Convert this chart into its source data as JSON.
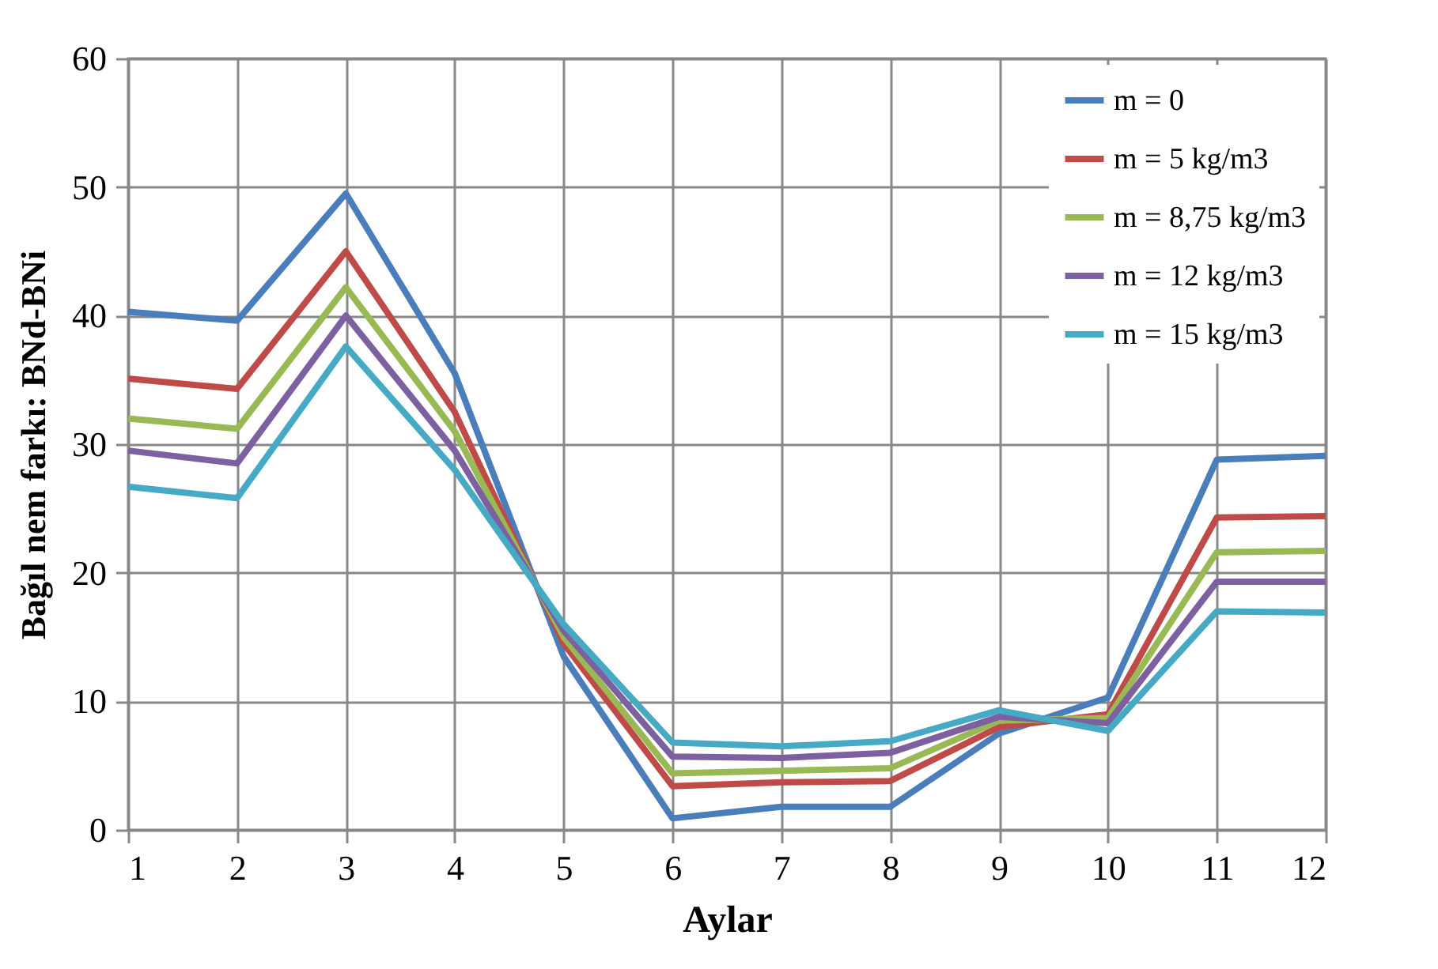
{
  "chart_data": {
    "type": "line",
    "xlabel": "Aylar",
    "ylabel": "Bağıl nem farkı: BNd-BNi",
    "x": [
      1,
      2,
      3,
      4,
      5,
      6,
      7,
      8,
      9,
      10,
      11,
      12
    ],
    "xlim": [
      1,
      12
    ],
    "xticks": [
      1,
      2,
      3,
      4,
      5,
      6,
      7,
      8,
      9,
      10,
      11,
      12
    ],
    "ylim": [
      0,
      60
    ],
    "yticks": [
      0,
      10,
      20,
      30,
      40,
      50,
      60
    ],
    "grid": true,
    "legend": "top right",
    "marker": "none",
    "line_style": "solid",
    "series": [
      {
        "name": "m = 0",
        "color": "#4a7ebb",
        "values": [
          40.3,
          39.6,
          49.5,
          35.5,
          13.5,
          0.9,
          1.8,
          1.8,
          7.5,
          10.3,
          28.8,
          29.1
        ]
      },
      {
        "name": "m = 5 kg/m3",
        "color": "#be4b48",
        "values": [
          35.1,
          34.3,
          45.0,
          32.5,
          14.5,
          3.4,
          3.7,
          3.8,
          8.0,
          9.0,
          24.3,
          24.4
        ]
      },
      {
        "name": "m = 8,75 kg/m3",
        "color": "#98b954",
        "values": [
          32.0,
          31.2,
          42.2,
          31.0,
          15.0,
          4.4,
          4.6,
          4.8,
          8.5,
          8.7,
          21.6,
          21.7
        ]
      },
      {
        "name": "m = 12 kg/m3",
        "color": "#7d60a0",
        "values": [
          29.5,
          28.5,
          40.0,
          29.5,
          15.5,
          5.7,
          5.6,
          6.0,
          8.8,
          8.3,
          19.3,
          19.3
        ]
      },
      {
        "name": "m = 15 kg/m3",
        "color": "#46aac5",
        "values": [
          26.7,
          25.8,
          37.6,
          28.0,
          16.0,
          6.8,
          6.5,
          6.9,
          9.3,
          7.7,
          17.0,
          16.9
        ]
      }
    ]
  }
}
